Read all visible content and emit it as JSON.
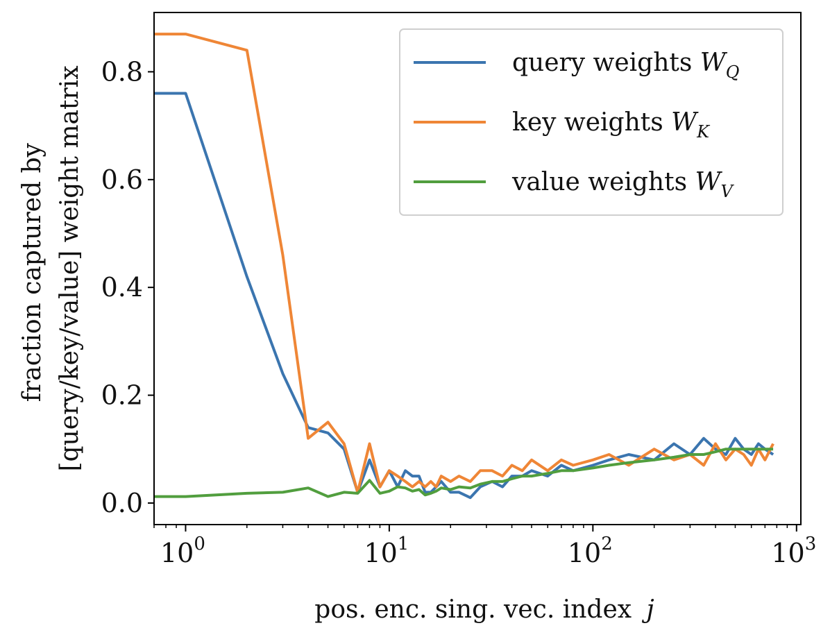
{
  "chart_data": {
    "type": "line",
    "title": "",
    "xlabel": "pos. enc. sing. vec. index",
    "xlabel_var": "j",
    "ylabel_lines": [
      "fraction captured by",
      "[query/key/value] weight matrix"
    ],
    "xscale": "log",
    "xlim": [
      0.7,
      1050
    ],
    "ylim": [
      -0.04,
      0.91
    ],
    "xticks": [
      {
        "value": 1,
        "base": "10",
        "exp": "0"
      },
      {
        "value": 10,
        "base": "10",
        "exp": "1"
      },
      {
        "value": 100,
        "base": "10",
        "exp": "2"
      },
      {
        "value": 1000,
        "base": "10",
        "exp": "3"
      }
    ],
    "yticks": [
      {
        "value": 0.0,
        "label": "0.0"
      },
      {
        "value": 0.2,
        "label": "0.2"
      },
      {
        "value": 0.4,
        "label": "0.4"
      },
      {
        "value": 0.6,
        "label": "0.6"
      },
      {
        "value": 0.8,
        "label": "0.8"
      }
    ],
    "grid": false,
    "legend_position": "top-right",
    "series": [
      {
        "name": "query weights",
        "symbol": "W",
        "subscript": "Q",
        "color": "#3b75af",
        "x": [
          0.7,
          1,
          2,
          3,
          4,
          5,
          6,
          7,
          8,
          9,
          10,
          11,
          12,
          13,
          14,
          15,
          16,
          17,
          18,
          20,
          22,
          25,
          28,
          32,
          36,
          40,
          45,
          50,
          60,
          70,
          80,
          100,
          120,
          150,
          200,
          250,
          300,
          350,
          400,
          450,
          500,
          550,
          600,
          650,
          700,
          768
        ],
        "y": [
          0.76,
          0.76,
          0.42,
          0.24,
          0.14,
          0.13,
          0.1,
          0.02,
          0.08,
          0.03,
          0.06,
          0.03,
          0.06,
          0.05,
          0.05,
          0.02,
          0.02,
          0.03,
          0.04,
          0.02,
          0.02,
          0.01,
          0.03,
          0.04,
          0.03,
          0.05,
          0.05,
          0.06,
          0.05,
          0.07,
          0.06,
          0.07,
          0.08,
          0.09,
          0.08,
          0.11,
          0.09,
          0.12,
          0.1,
          0.09,
          0.12,
          0.1,
          0.09,
          0.11,
          0.1,
          0.09
        ]
      },
      {
        "name": "key weights",
        "symbol": "W",
        "subscript": "K",
        "color": "#ef8636",
        "x": [
          0.7,
          1,
          2,
          3,
          4,
          5,
          6,
          7,
          8,
          9,
          10,
          11,
          12,
          13,
          14,
          15,
          16,
          17,
          18,
          20,
          22,
          25,
          28,
          32,
          36,
          40,
          45,
          50,
          60,
          70,
          80,
          100,
          120,
          150,
          200,
          250,
          300,
          350,
          400,
          450,
          500,
          550,
          600,
          650,
          700,
          768
        ],
        "y": [
          0.87,
          0.87,
          0.84,
          0.46,
          0.12,
          0.15,
          0.11,
          0.02,
          0.11,
          0.03,
          0.06,
          0.05,
          0.04,
          0.03,
          0.04,
          0.03,
          0.04,
          0.03,
          0.05,
          0.04,
          0.05,
          0.04,
          0.06,
          0.06,
          0.05,
          0.07,
          0.06,
          0.08,
          0.06,
          0.08,
          0.07,
          0.08,
          0.09,
          0.07,
          0.1,
          0.08,
          0.09,
          0.07,
          0.11,
          0.08,
          0.1,
          0.09,
          0.07,
          0.1,
          0.08,
          0.11
        ]
      },
      {
        "name": "value weights",
        "symbol": "W",
        "subscript": "V",
        "color": "#519e3e",
        "x": [
          0.7,
          1,
          2,
          3,
          4,
          5,
          6,
          7,
          8,
          9,
          10,
          11,
          12,
          13,
          14,
          15,
          16,
          17,
          18,
          20,
          22,
          25,
          28,
          32,
          36,
          40,
          45,
          50,
          60,
          70,
          80,
          100,
          120,
          150,
          200,
          250,
          300,
          350,
          400,
          450,
          500,
          550,
          600,
          650,
          700,
          768
        ],
        "y": [
          0.012,
          0.012,
          0.018,
          0.02,
          0.028,
          0.012,
          0.02,
          0.018,
          0.042,
          0.018,
          0.022,
          0.03,
          0.028,
          0.022,
          0.025,
          0.015,
          0.018,
          0.022,
          0.028,
          0.025,
          0.03,
          0.028,
          0.035,
          0.04,
          0.04,
          0.045,
          0.05,
          0.05,
          0.055,
          0.06,
          0.06,
          0.065,
          0.07,
          0.075,
          0.08,
          0.085,
          0.09,
          0.09,
          0.095,
          0.1,
          0.1,
          0.1,
          0.1,
          0.1,
          0.1,
          0.1
        ]
      }
    ]
  }
}
